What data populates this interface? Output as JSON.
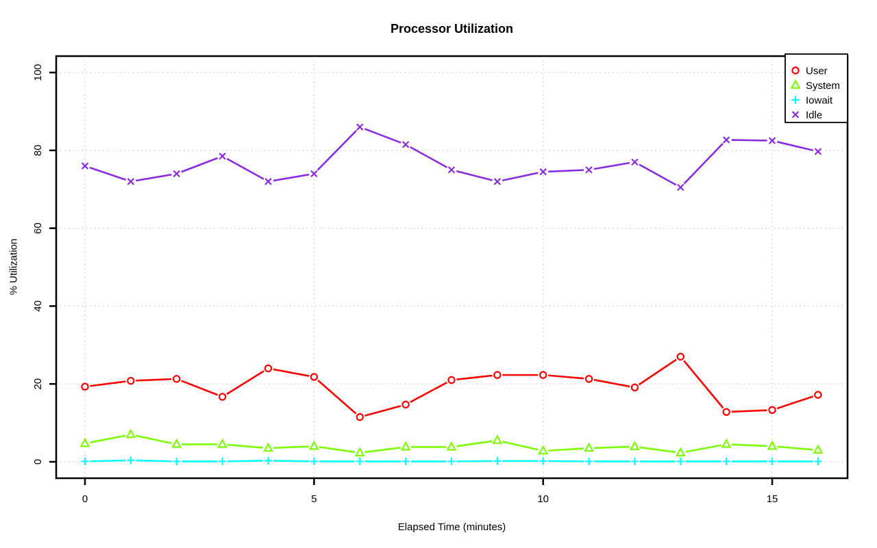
{
  "chart_data": {
    "type": "line",
    "title": "Processor Utilization",
    "xlabel": "Elapsed Time (minutes)",
    "ylabel": "% Utilization",
    "x": [
      0,
      1,
      2,
      3,
      4,
      5,
      6,
      7,
      8,
      9,
      10,
      11,
      12,
      13,
      14,
      15,
      16
    ],
    "xticks": [
      0,
      5,
      10,
      15
    ],
    "yticks": [
      0,
      20,
      40,
      60,
      80,
      100
    ],
    "xlim": [
      -0.64,
      16.64
    ],
    "ylim": [
      0,
      100
    ],
    "grid": true,
    "grid_style": "dotted",
    "legend_position": "top-right",
    "line_style": "segments-with-marker-gaps",
    "series": [
      {
        "name": "User",
        "color": "#ff0000",
        "marker": "circle",
        "values": [
          19.3,
          20.8,
          21.3,
          16.7,
          24.0,
          21.8,
          11.5,
          14.7,
          21.0,
          22.3,
          22.3,
          21.3,
          19.1,
          27.0,
          12.8,
          13.3,
          17.2
        ]
      },
      {
        "name": "System",
        "color": "#7cfc00",
        "marker": "triangle",
        "values": [
          4.7,
          7.0,
          4.5,
          4.5,
          3.5,
          4.0,
          2.3,
          3.8,
          3.8,
          5.5,
          2.8,
          3.5,
          3.9,
          2.3,
          4.5,
          4.0,
          3.0
        ]
      },
      {
        "name": "Iowait",
        "color": "#00ffff",
        "marker": "plus",
        "values": [
          0.1,
          0.4,
          0.1,
          0.1,
          0.3,
          0.1,
          0.1,
          0.1,
          0.1,
          0.2,
          0.2,
          0.1,
          0.1,
          0.1,
          0.1,
          0.1,
          0.1
        ]
      },
      {
        "name": "Idle",
        "color": "#8a2be2",
        "marker": "x",
        "values": [
          76.0,
          72.0,
          74.0,
          78.5,
          72.0,
          74.0,
          86.0,
          81.5,
          75.0,
          72.0,
          74.5,
          75.0,
          77.0,
          70.5,
          82.7,
          82.5,
          79.7
        ]
      }
    ]
  },
  "colors": {
    "background": "#ffffff",
    "grid": "#d8d8d8",
    "axis": "#000000",
    "legend_border": "#000000",
    "legend_background": "#ffffff"
  }
}
